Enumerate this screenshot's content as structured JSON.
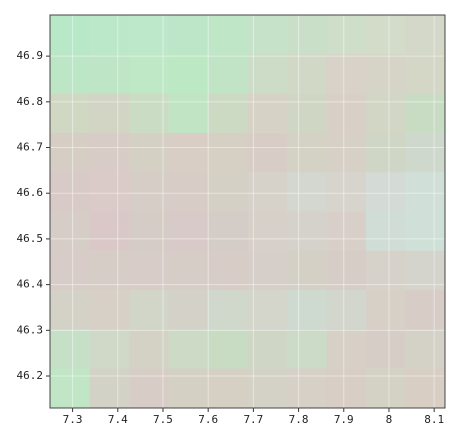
{
  "chart_data": {
    "type": "raster",
    "xlim": [
      7.25,
      8.124
    ],
    "ylim": [
      46.13,
      46.99
    ],
    "xticks": [
      7.3,
      7.4,
      7.5,
      7.6,
      7.7,
      7.8,
      7.9,
      8,
      8.1
    ],
    "yticks": [
      46.2,
      46.3,
      46.4,
      46.5,
      46.6,
      46.7,
      46.8,
      46.9
    ],
    "grid": true,
    "pixels": [
      [
        "#b8e8c8",
        "#bae8c8",
        "#bde8ca",
        "#bde6c8",
        "#c0e6c8",
        "#c6e2c8",
        "#cadfc8",
        "#cfdec8",
        "#d2dcc8",
        "#d4d8c8"
      ],
      [
        "#bce6c6",
        "#bee6c6",
        "#bee8c6",
        "#bce8c4",
        "#c2e4c6",
        "#ccdcc6",
        "#d2d8c6",
        "#d8d2c8",
        "#d6d4c6",
        "#d4d6c6"
      ],
      [
        "#d0d8c4",
        "#d2d4c4",
        "#cadcc4",
        "#c0e4c4",
        "#ccdac4",
        "#d6d2c6",
        "#d0d6c4",
        "#d8d0c6",
        "#d2d6c4",
        "#c8dcc4"
      ],
      [
        "#d6cec4",
        "#d8ccc6",
        "#d4d0c4",
        "#d8cec6",
        "#d6d0c4",
        "#d8ccc6",
        "#d4d2c4",
        "#d6d0c6",
        "#d0d6c6",
        "#cfd8cc"
      ],
      [
        "#d8cac6",
        "#dacac8",
        "#d6cec6",
        "#d8ccc6",
        "#d4d0c6",
        "#d6d2ca",
        "#d4d6d0",
        "#d6d4cc",
        "#d4dad6",
        "#d0e0d8"
      ],
      [
        "#d6cec6",
        "#dac8c8",
        "#d6ccc6",
        "#d8cac8",
        "#d4ccc6",
        "#d6d0c8",
        "#d4d2ca",
        "#d8d0c8",
        "#d0dcd6",
        "#cfe0d8"
      ],
      [
        "#d8ccc8",
        "#d6cec6",
        "#d8ccc8",
        "#d6cec6",
        "#d8ccc6",
        "#d6cec8",
        "#d4d0c6",
        "#d6cec6",
        "#d6d2ca",
        "#d4d4cc"
      ],
      [
        "#d4d2c6",
        "#d6d0c6",
        "#d2d6c8",
        "#d4d2c8",
        "#d0d8cc",
        "#d4d6cc",
        "#cedad0",
        "#d2d6cc",
        "#d6d0c6",
        "#d8ccc6"
      ],
      [
        "#c6e0c8",
        "#d0d8c8",
        "#d4d2c4",
        "#ccdac6",
        "#c8dcc4",
        "#d0d6c6",
        "#ccdac8",
        "#d6d0c6",
        "#d6cec6",
        "#d4d2c6"
      ],
      [
        "#c0e6c6",
        "#d2d2c6",
        "#d8ccc6",
        "#d4d0c4",
        "#d6d0c4",
        "#d4d2c6",
        "#d6d0c6",
        "#d8cec6",
        "#d4d2c4",
        "#d8cec4"
      ]
    ]
  }
}
